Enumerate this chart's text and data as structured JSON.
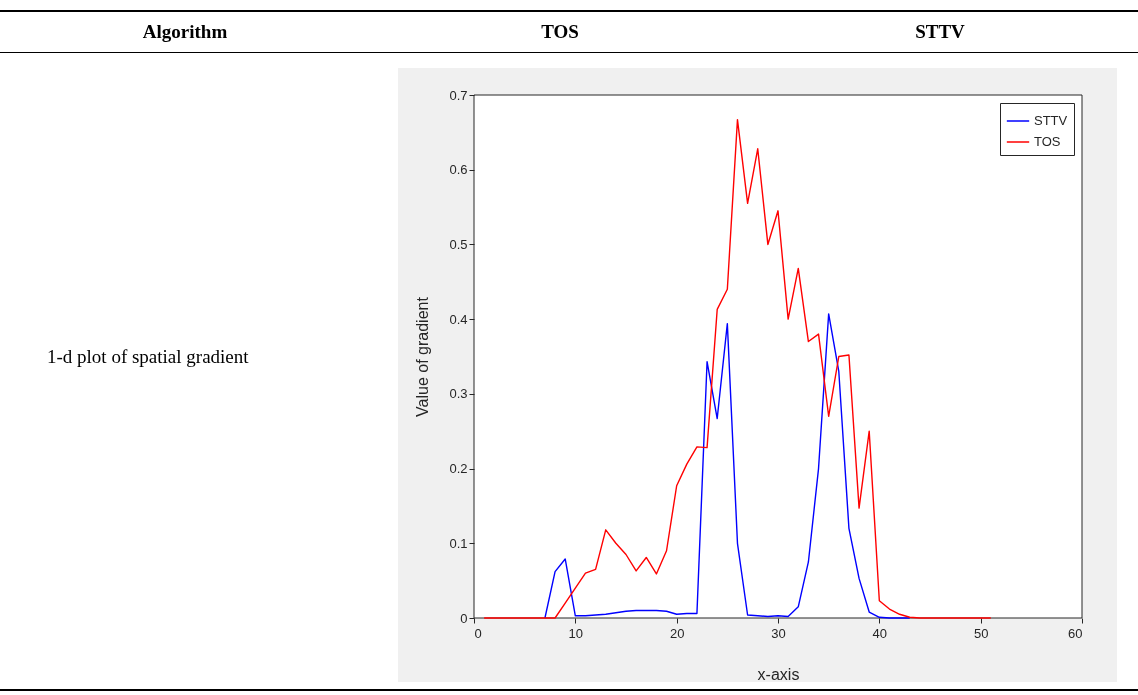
{
  "chart_data": {
    "type": "line",
    "xlabel": "x-axis",
    "ylabel": "Value of gradient",
    "annotations": [
      "Algorithm",
      "TOS",
      "STTV",
      "1-d plot of spatial gradient"
    ],
    "x": [
      1,
      2,
      3,
      4,
      5,
      6,
      7,
      8,
      9,
      10,
      11,
      12,
      13,
      14,
      15,
      16,
      17,
      18,
      19,
      20,
      21,
      22,
      23,
      24,
      25,
      26,
      27,
      28,
      29,
      30,
      31,
      32,
      33,
      34,
      35,
      36,
      37,
      38,
      39,
      40,
      41,
      42,
      43,
      44,
      45,
      46,
      47,
      48,
      49,
      50,
      51
    ],
    "series": [
      {
        "name": "STTV",
        "color": "#0000ff",
        "values": [
          null,
          null,
          null,
          null,
          null,
          null,
          0,
          0.062,
          0.079,
          0.003,
          0.003,
          0.004,
          0.005,
          0.007,
          0.009,
          0.01,
          0.01,
          0.01,
          0.009,
          0.005,
          0.006,
          0.006,
          0.343,
          0.267,
          0.394,
          0.1,
          0.004,
          0.003,
          0.002,
          0.003,
          0.002,
          0.015,
          0.075,
          0.2,
          0.407,
          0.33,
          0.12,
          0.053,
          0.008,
          0.001,
          0,
          0,
          0,
          null,
          null,
          null,
          null,
          null,
          null,
          null,
          null
        ]
      },
      {
        "name": "TOS",
        "color": "#ff0000",
        "values": [
          0,
          0,
          0,
          0,
          0,
          0,
          0,
          0,
          0.02,
          0.04,
          0.06,
          0.065,
          0.118,
          0.1,
          0.085,
          0.063,
          0.081,
          0.059,
          0.09,
          0.177,
          0.206,
          0.229,
          0.228,
          0.413,
          0.44,
          0.667,
          0.555,
          0.628,
          0.5,
          0.545,
          0.4,
          0.468,
          0.37,
          0.38,
          0.27,
          0.35,
          0.352,
          0.147,
          0.25,
          0.023,
          0.012,
          0.005,
          0.001,
          0,
          0,
          0,
          0,
          0,
          0,
          0,
          0
        ]
      }
    ],
    "xlim": [
      0,
      60
    ],
    "xticks": [
      0,
      10,
      20,
      30,
      40,
      50,
      60
    ],
    "ylim": [
      0,
      0.7
    ],
    "yticks": [
      0,
      0.1,
      0.2,
      0.3,
      0.4,
      0.5,
      0.6,
      0.7
    ],
    "legend": "top right"
  }
}
